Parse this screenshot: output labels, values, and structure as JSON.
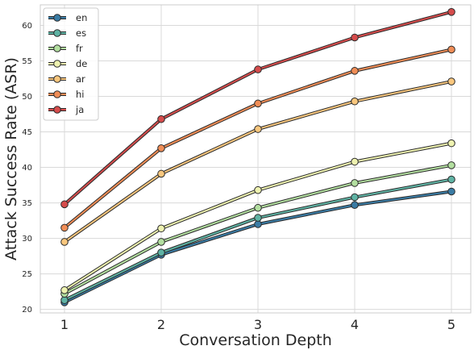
{
  "chart_data": {
    "type": "line",
    "title": "",
    "xlabel": "Conversation Depth",
    "ylabel": "Attack Success Rate (ASR)",
    "x": [
      1,
      2,
      3,
      4,
      5
    ],
    "x_ticks": [
      "1",
      "2",
      "3",
      "4",
      "5"
    ],
    "y_ticks": [
      "20",
      "25",
      "30",
      "35",
      "40",
      "45",
      "50",
      "55",
      "60"
    ],
    "xlim": [
      0.75,
      5.2
    ],
    "ylim": [
      19.5,
      62.9
    ],
    "grid": true,
    "legend_position": "top-left",
    "series": [
      {
        "name": "en",
        "color": "#3a7ca5",
        "values": [
          21.0,
          27.7,
          32.0,
          34.7,
          36.6
        ]
      },
      {
        "name": "es",
        "color": "#5fb3a4",
        "values": [
          21.3,
          28.0,
          32.9,
          35.8,
          38.3
        ]
      },
      {
        "name": "fr",
        "color": "#b3dfa0",
        "values": [
          22.2,
          29.5,
          34.3,
          37.8,
          40.3
        ]
      },
      {
        "name": "de",
        "color": "#eef2b0",
        "values": [
          22.7,
          31.4,
          36.8,
          40.8,
          43.4
        ]
      },
      {
        "name": "ar",
        "color": "#f9c77e",
        "values": [
          29.5,
          39.1,
          45.4,
          49.3,
          52.1
        ]
      },
      {
        "name": "hi",
        "color": "#f08d56",
        "values": [
          31.5,
          42.7,
          49.0,
          53.6,
          56.6
        ]
      },
      {
        "name": "ja",
        "color": "#d64c4c",
        "values": [
          34.8,
          46.8,
          53.8,
          58.3,
          61.9
        ]
      }
    ]
  }
}
